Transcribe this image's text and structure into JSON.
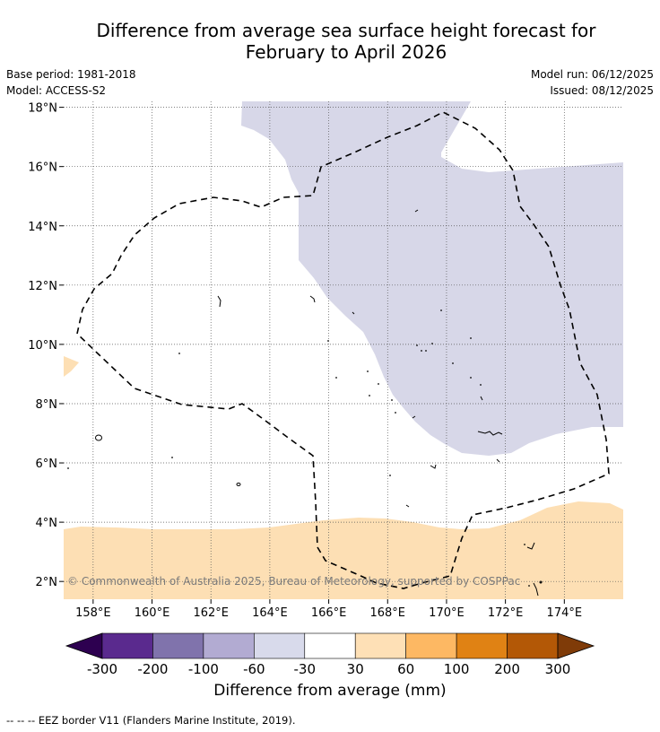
{
  "header": {
    "title_line1": "Difference from average sea surface height forecast for",
    "title_line2": "February to April 2026",
    "base_period": "Base period: 1981-2018",
    "model": "Model: ACCESS-S2",
    "model_run": "Model run: 06/12/2025",
    "issued": "Issued: 08/12/2025"
  },
  "map": {
    "lon_range": [
      157,
      176
    ],
    "lat_range": [
      1.4,
      18.2
    ],
    "lon_ticks": [
      158,
      160,
      162,
      164,
      166,
      168,
      170,
      172,
      174
    ],
    "lon_tick_labels": [
      "158°E",
      "160°E",
      "162°E",
      "164°E",
      "166°E",
      "168°E",
      "170°E",
      "172°E",
      "174°E"
    ],
    "lat_ticks": [
      2,
      4,
      6,
      8,
      10,
      12,
      14,
      16,
      18
    ],
    "lat_tick_labels": [
      "2°N",
      "4°N",
      "6°N",
      "8°N",
      "10°N",
      "12°N",
      "14°N",
      "16°N",
      "18°N"
    ],
    "grid": true,
    "grid_style": "dotted",
    "copyright": "© Commonwealth of Australia 2025, Bureau of Meteorology, supported by COSPPac",
    "fill_regions": [
      {
        "category": "-60 to -30",
        "color": "#d7d7e8",
        "description": "negative anomaly north-east"
      },
      {
        "category": "30 to 60",
        "color": "#fddfb4",
        "description": "positive anomaly south"
      }
    ]
  },
  "colorbar": {
    "title": "Difference from average (mm)",
    "colors": [
      "#2d0050",
      "#5a2a8e",
      "#8073ac",
      "#b2abd2",
      "#d8daeb",
      "#ffffff",
      "#fee0b6",
      "#fdb863",
      "#e08214",
      "#b35806",
      "#7f3b08"
    ],
    "tick_labels": [
      "-300",
      "-200",
      "-100",
      "-60",
      "-30",
      "30",
      "60",
      "100",
      "200",
      "300"
    ]
  },
  "footnote": "-- -- -- EEZ border V11 (Flanders Marine Institute, 2019)."
}
